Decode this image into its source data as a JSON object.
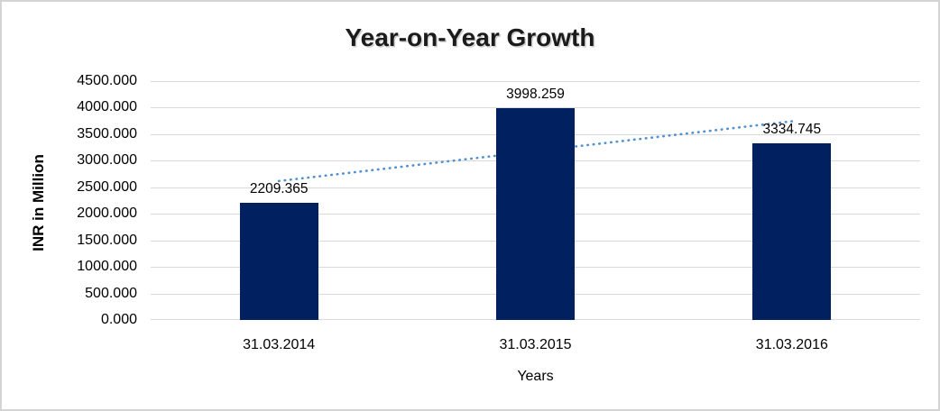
{
  "window": {
    "background_color": "#ffffff",
    "frame_border_color": "#d4d4d4"
  },
  "chart_data": {
    "type": "bar",
    "title": "Year-on-Year Growth",
    "categories": [
      "31.03.2014",
      "31.03.2015",
      "31.03.2016"
    ],
    "series": [
      {
        "name": "INR in Million",
        "values": [
          2209.365,
          3998.259,
          3334.745
        ]
      }
    ],
    "data_labels": [
      "2209.365",
      "3998.259",
      "3334.745"
    ],
    "xlabel": "Years",
    "ylabel": "INR in Million",
    "ylim": [
      0,
      4500
    ],
    "ytick_step": 500,
    "yticks": [
      "4500.000",
      "4000.000",
      "3500.000",
      "3000.000",
      "2500.000",
      "2000.000",
      "1500.000",
      "1000.000",
      "500.000",
      "0.000"
    ],
    "grid": true,
    "legend_position": "none",
    "bar_color": "#002060",
    "gridline_color": "#d9d9d9",
    "trendline": {
      "type": "linear",
      "style": "dotted",
      "color": "#4f90d1",
      "endpoint_values": [
        2618.1,
        3743.5
      ],
      "drawn_behind_bars": true
    }
  }
}
